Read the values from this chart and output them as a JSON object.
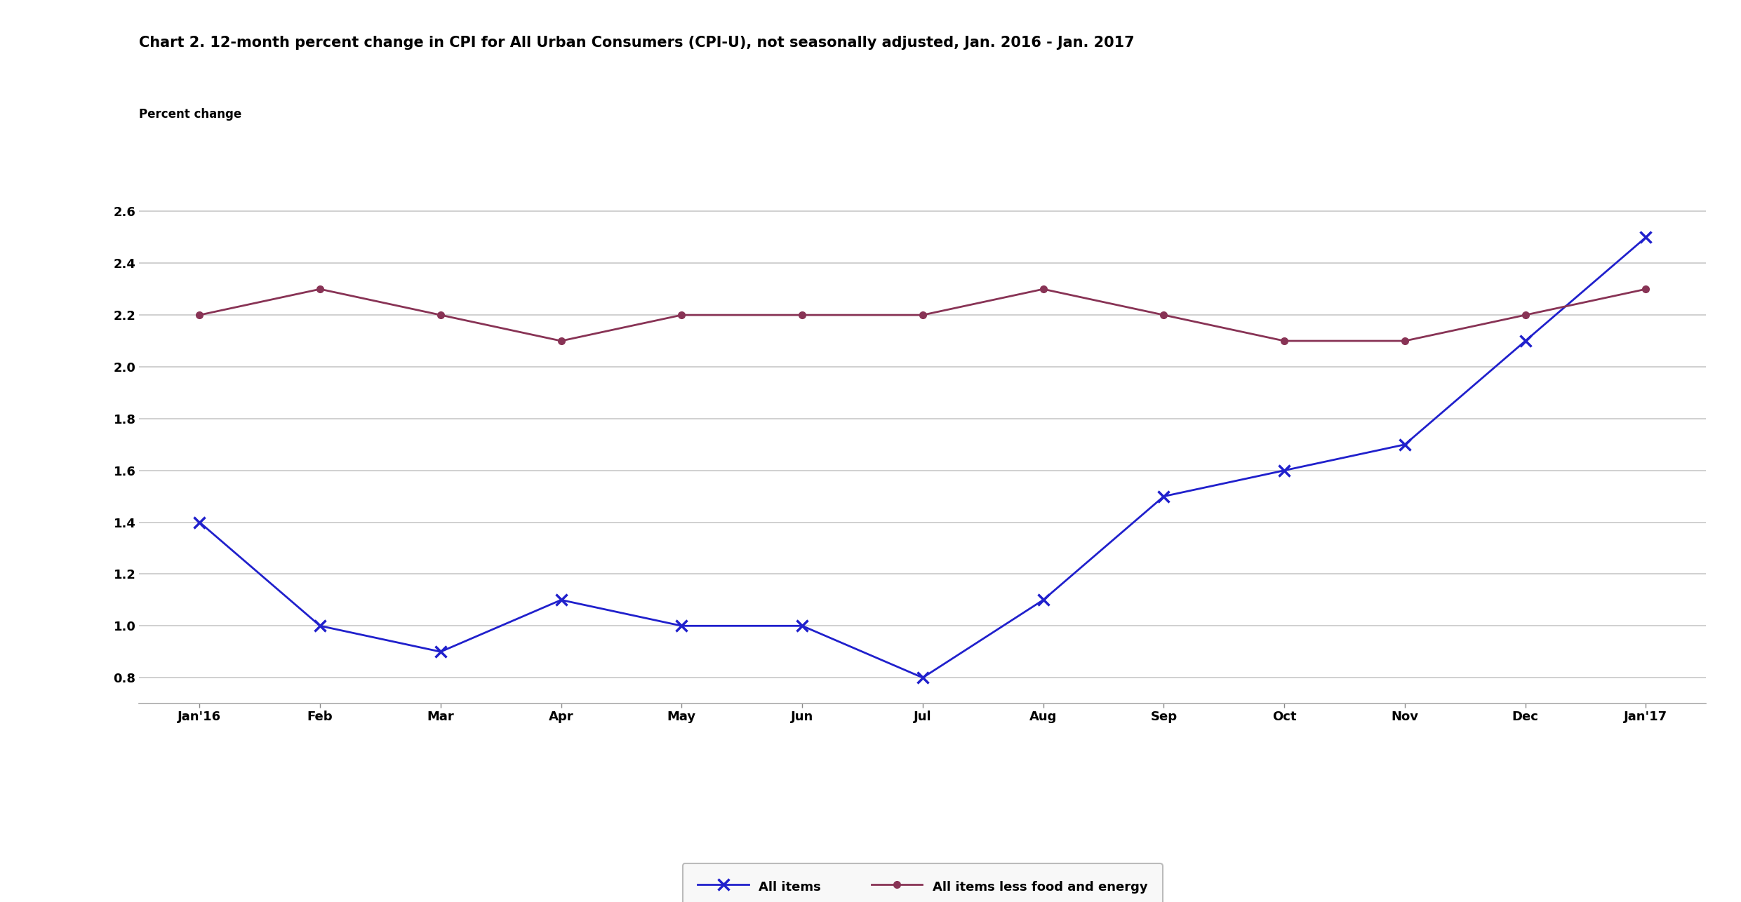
{
  "title": "Chart 2. 12-month percent change in CPI for All Urban Consumers (CPI-U), not seasonally adjusted, Jan. 2016 - Jan. 2017",
  "ylabel": "Percent change",
  "x_labels": [
    "Jan'16",
    "Feb",
    "Mar",
    "Apr",
    "May",
    "Jun",
    "Jul",
    "Aug",
    "Sep",
    "Oct",
    "Nov",
    "Dec",
    "Jan'17"
  ],
  "all_items": [
    1.4,
    1.0,
    0.9,
    1.1,
    1.0,
    1.0,
    0.8,
    1.1,
    1.5,
    1.6,
    1.7,
    2.1,
    2.5
  ],
  "all_items_less": [
    2.2,
    2.3,
    2.2,
    2.1,
    2.2,
    2.2,
    2.2,
    2.3,
    2.2,
    2.1,
    2.1,
    2.2,
    2.3
  ],
  "all_items_color": "#2020CC",
  "all_items_less_color": "#883355",
  "ylim_min": 0.7,
  "ylim_max": 2.65,
  "yticks": [
    0.8,
    1.0,
    1.2,
    1.4,
    1.6,
    1.8,
    2.0,
    2.2,
    2.4,
    2.6
  ],
  "legend_label_1": "All items",
  "legend_label_2": "All items less food and energy",
  "background_color": "#ffffff",
  "plot_bg_color": "#ffffff",
  "grid_color": "#c8c8c8",
  "title_fontsize": 15,
  "ylabel_fontsize": 12,
  "tick_fontsize": 13,
  "legend_fontsize": 13
}
